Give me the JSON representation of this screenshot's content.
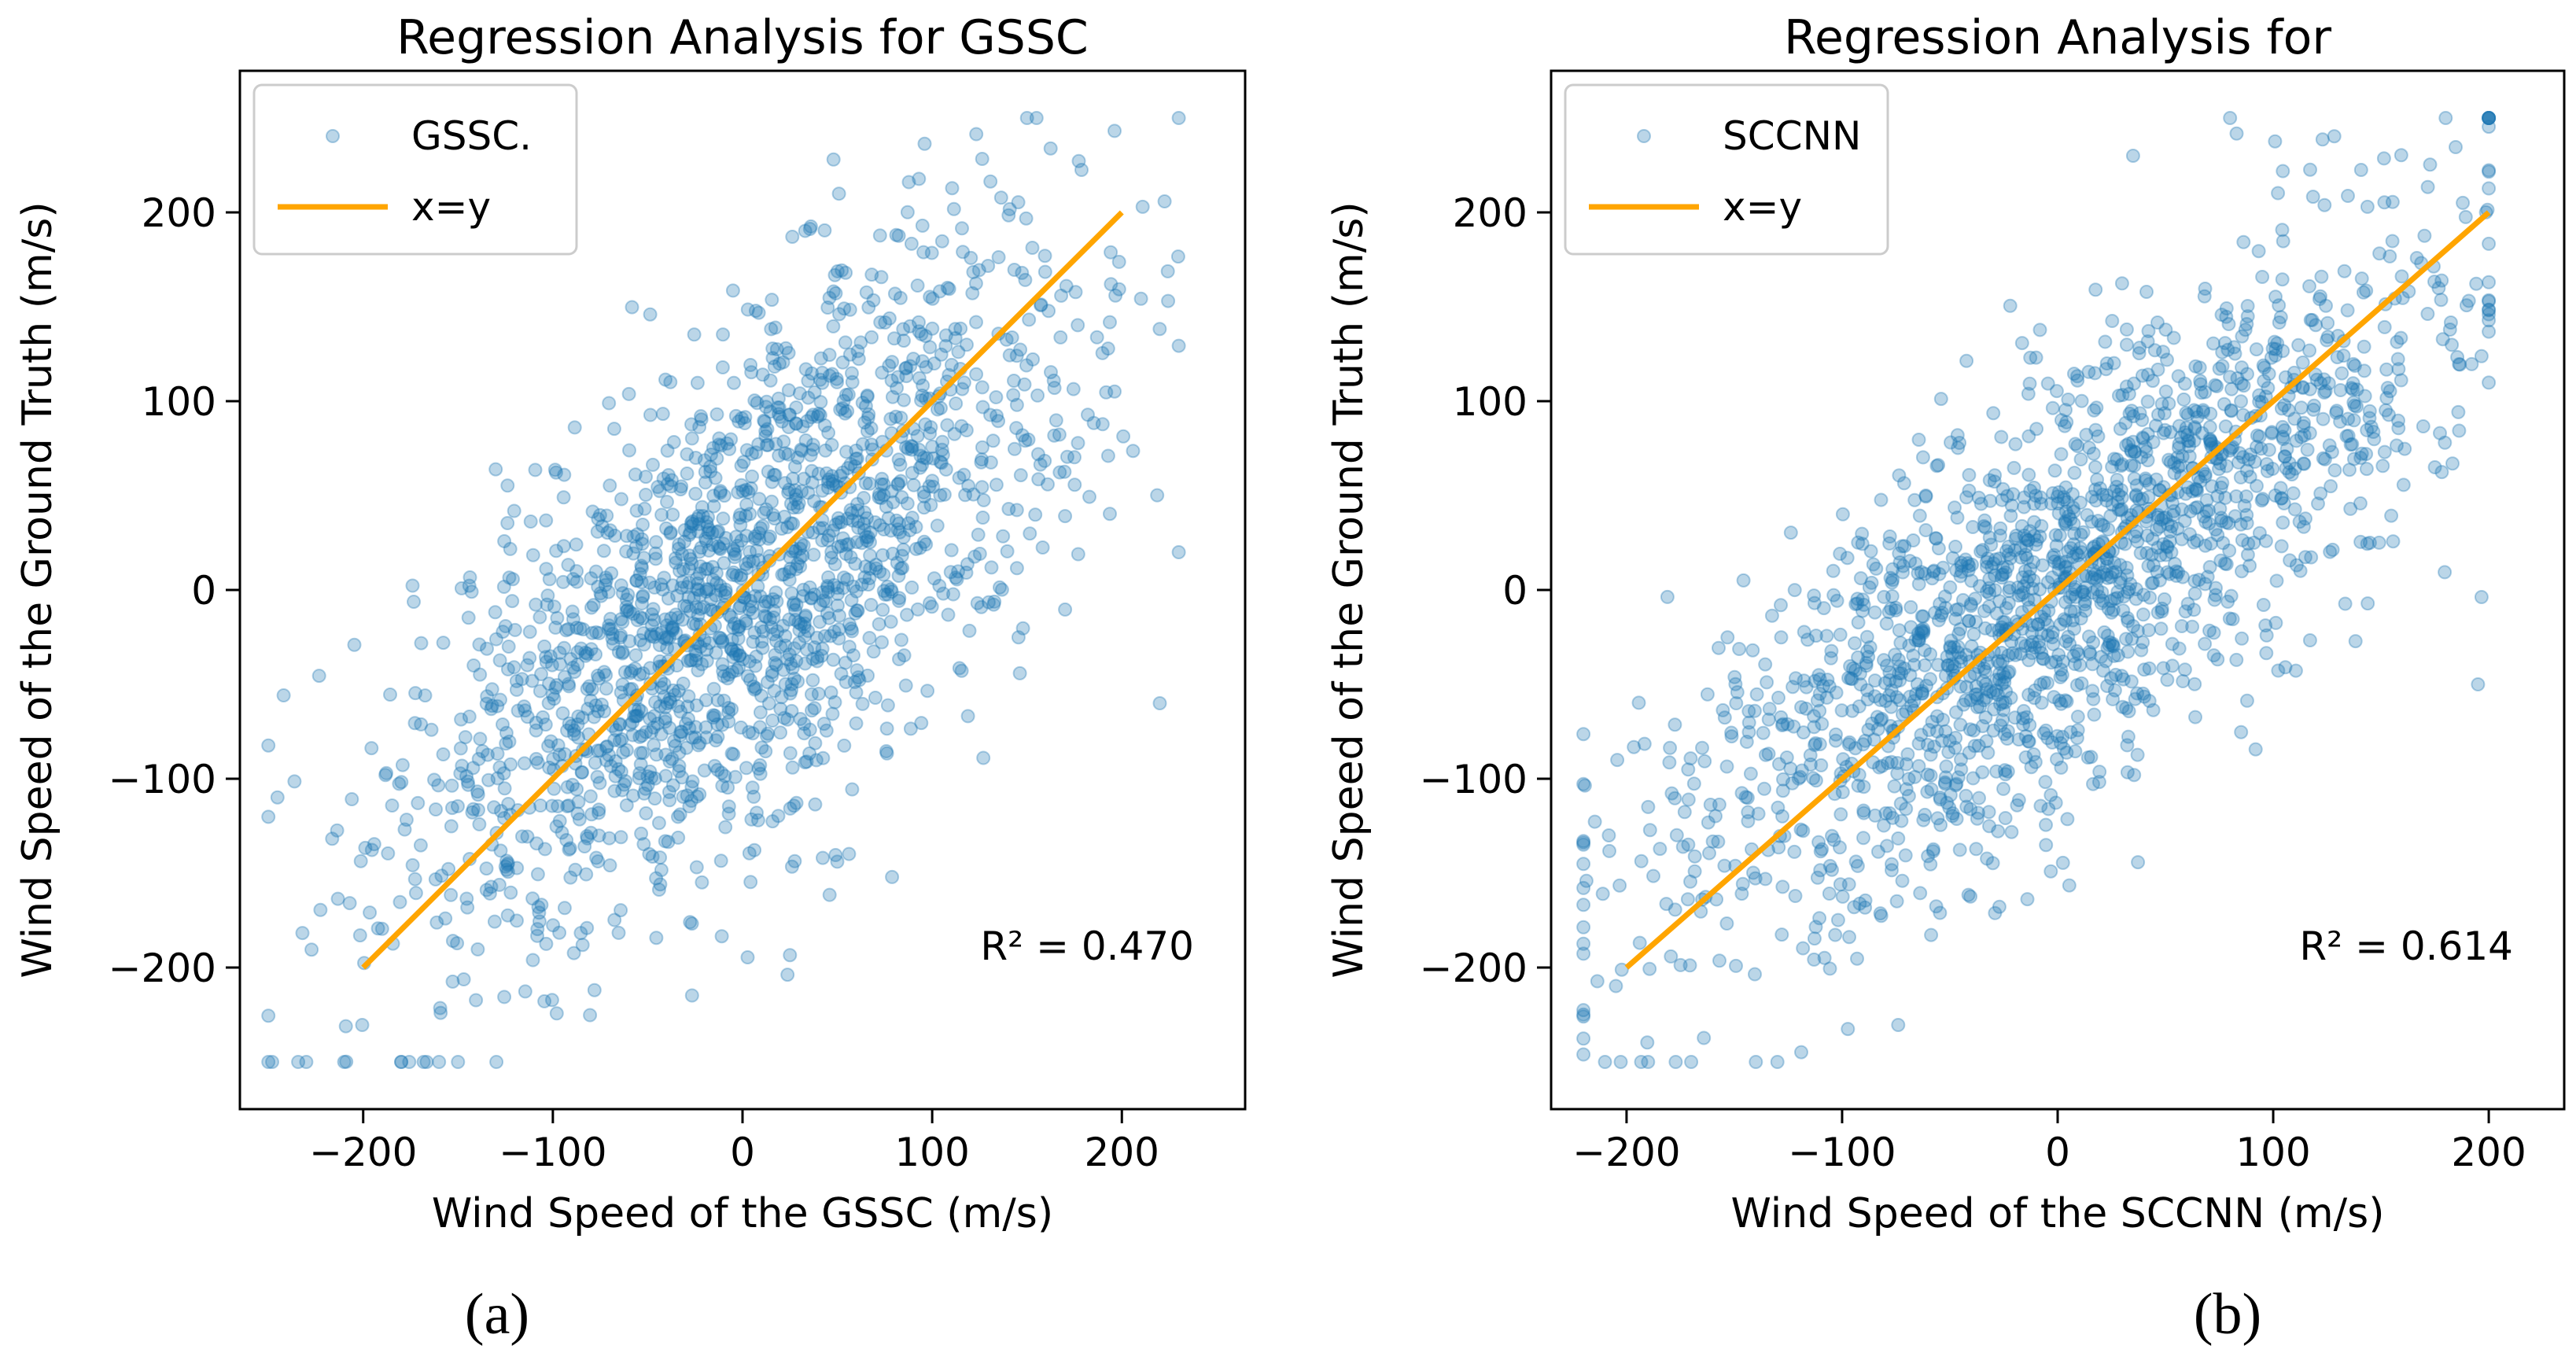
{
  "figure": {
    "panel_labels": [
      "(a)",
      "(b)"
    ]
  },
  "colors": {
    "scatter": "#1f77b4",
    "identity_line": "#ffa500",
    "axes": "#000000"
  },
  "chart_data": [
    {
      "type": "scatter",
      "title": "Regression Analysis for GSSC",
      "xlabel": "Wind Speed of the GSSC (m/s)",
      "ylabel": "Wind Speed of the Ground Truth (m/s)",
      "xlim": [
        -265,
        265
      ],
      "ylim": [
        -275,
        275
      ],
      "xticks": [
        -200,
        -100,
        0,
        100,
        200
      ],
      "yticks": [
        -200,
        -100,
        0,
        100,
        200
      ],
      "xtick_labels": [
        "−200",
        "−100",
        "0",
        "100",
        "200"
      ],
      "ytick_labels": [
        "−200",
        "−100",
        "0",
        "100",
        "200"
      ],
      "legend": {
        "position": "top-left",
        "entries": [
          "GSSC.",
          "x=y"
        ]
      },
      "annotation": {
        "text": "R² =  0.470",
        "position": "bottom-right"
      },
      "series": [
        {
          "name": "GSSC.",
          "kind": "scatter",
          "r2": 0.47,
          "x_range": [
            -250,
            230
          ],
          "y_range": [
            -250,
            250
          ],
          "points_shown": 1800,
          "sample_points": [
            [
              -248,
              -250
            ],
            [
              -230,
              -250
            ],
            [
              -210,
              -250
            ],
            [
              -180,
              -250
            ],
            [
              -160,
              -250
            ],
            [
              -150,
              -250
            ],
            [
              150,
              250
            ],
            [
              155,
              250
            ],
            [
              48,
              228
            ],
            [
              230,
              20
            ],
            [
              220,
              -60
            ]
          ]
        },
        {
          "name": "x=y",
          "kind": "line",
          "x": [
            -200,
            200
          ],
          "y": [
            -200,
            200
          ]
        }
      ]
    },
    {
      "type": "scatter",
      "title": "Regression Analysis for",
      "xlabel": "Wind Speed of the SCCNN (m/s)",
      "ylabel": "Wind Speed of the Ground Truth (m/s)",
      "xlim": [
        -235,
        235
      ],
      "ylim": [
        -275,
        275
      ],
      "xticks": [
        -200,
        -100,
        0,
        100,
        200
      ],
      "yticks": [
        -200,
        -100,
        0,
        100,
        200
      ],
      "xtick_labels": [
        "−200",
        "−100",
        "0",
        "100",
        "200"
      ],
      "ytick_labels": [
        "−200",
        "−100",
        "0",
        "100",
        "200"
      ],
      "legend": {
        "position": "top-left",
        "entries": [
          "SCCNN",
          "x=y"
        ]
      },
      "annotation": {
        "text": "R² =  0.614",
        "position": "bottom-right"
      },
      "series": [
        {
          "name": "SCCNN",
          "kind": "scatter",
          "r2": 0.614,
          "x_range": [
            -220,
            200
          ],
          "y_range": [
            -250,
            250
          ],
          "points_shown": 1800,
          "sample_points": [
            [
              -210,
              -250
            ],
            [
              -190,
              -250
            ],
            [
              -170,
              -250
            ],
            [
              -140,
              -250
            ],
            [
              -130,
              -250
            ],
            [
              80,
              250
            ],
            [
              180,
              250
            ],
            [
              35,
              230
            ],
            [
              195,
              -50
            ],
            [
              175,
              65
            ]
          ]
        },
        {
          "name": "x=y",
          "kind": "line",
          "x": [
            -200,
            200
          ],
          "y": [
            -200,
            200
          ]
        }
      ]
    }
  ]
}
